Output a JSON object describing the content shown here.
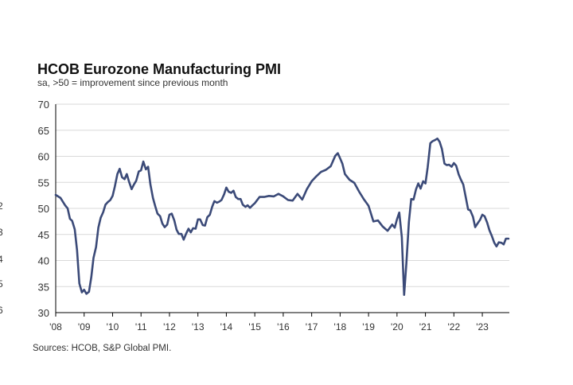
{
  "colors": {
    "line": "#3b4a78",
    "grid": "#d9d9d9",
    "axis": "#000000",
    "background": "#ffffff"
  },
  "source": "Sources: HCOB, S&P Global PMI.",
  "edge_marks": [
    "2",
    "3",
    "4",
    "5",
    "6"
  ],
  "chart_data": {
    "type": "line",
    "title": "HCOB Eurozone Manufacturing PMI",
    "subtitle": "sa, >50 = improvement since previous month",
    "xlabel": "",
    "ylabel": "",
    "ylim": [
      30,
      70
    ],
    "xlim": [
      2008.0,
      2023.95
    ],
    "yticks": [
      30,
      35,
      40,
      45,
      50,
      55,
      60,
      65,
      70
    ],
    "xticks": [
      {
        "label": "'08",
        "x": 2008
      },
      {
        "label": "'09",
        "x": 2009
      },
      {
        "label": "'10",
        "x": 2010
      },
      {
        "label": "'11",
        "x": 2011
      },
      {
        "label": "'12",
        "x": 2012
      },
      {
        "label": "'13",
        "x": 2013
      },
      {
        "label": "'14",
        "x": 2014
      },
      {
        "label": "'15",
        "x": 2015
      },
      {
        "label": "'16",
        "x": 2016
      },
      {
        "label": "'17",
        "x": 2017
      },
      {
        "label": "'18",
        "x": 2018
      },
      {
        "label": "'19",
        "x": 2019
      },
      {
        "label": "'20",
        "x": 2020
      },
      {
        "label": "'21",
        "x": 2021
      },
      {
        "label": "'22",
        "x": 2022
      },
      {
        "label": "'23",
        "x": 2023
      }
    ],
    "grid": true,
    "series": [
      {
        "name": "HCOB Eurozone Manufacturing PMI",
        "x": [
          2008.0,
          2008.17,
          2008.33,
          2008.42,
          2008.5,
          2008.58,
          2008.67,
          2008.75,
          2008.83,
          2008.92,
          2009.0,
          2009.08,
          2009.17,
          2009.25,
          2009.33,
          2009.42,
          2009.5,
          2009.58,
          2009.67,
          2009.75,
          2009.83,
          2009.92,
          2010.0,
          2010.08,
          2010.17,
          2010.25,
          2010.33,
          2010.42,
          2010.5,
          2010.58,
          2010.67,
          2010.75,
          2010.83,
          2010.92,
          2011.0,
          2011.08,
          2011.17,
          2011.25,
          2011.33,
          2011.42,
          2011.5,
          2011.58,
          2011.67,
          2011.75,
          2011.83,
          2011.92,
          2012.0,
          2012.08,
          2012.17,
          2012.25,
          2012.33,
          2012.42,
          2012.5,
          2012.58,
          2012.67,
          2012.75,
          2012.83,
          2012.92,
          2013.0,
          2013.08,
          2013.17,
          2013.25,
          2013.33,
          2013.42,
          2013.5,
          2013.58,
          2013.67,
          2013.75,
          2013.83,
          2013.92,
          2014.0,
          2014.08,
          2014.17,
          2014.25,
          2014.33,
          2014.42,
          2014.5,
          2014.58,
          2014.67,
          2014.75,
          2014.83,
          2014.92,
          2015.0,
          2015.17,
          2015.33,
          2015.5,
          2015.67,
          2015.83,
          2016.0,
          2016.17,
          2016.33,
          2016.5,
          2016.67,
          2016.83,
          2017.0,
          2017.17,
          2017.33,
          2017.5,
          2017.67,
          2017.83,
          2017.92,
          2018.0,
          2018.08,
          2018.17,
          2018.33,
          2018.5,
          2018.67,
          2018.83,
          2019.0,
          2019.17,
          2019.33,
          2019.5,
          2019.67,
          2019.83,
          2019.92,
          2020.0,
          2020.08,
          2020.17,
          2020.25,
          2020.33,
          2020.42,
          2020.5,
          2020.58,
          2020.67,
          2020.75,
          2020.83,
          2020.92,
          2021.0,
          2021.08,
          2021.17,
          2021.25,
          2021.33,
          2021.42,
          2021.5,
          2021.58,
          2021.67,
          2021.75,
          2021.83,
          2021.92,
          2022.0,
          2022.08,
          2022.17,
          2022.25,
          2022.33,
          2022.42,
          2022.5,
          2022.58,
          2022.67,
          2022.75,
          2022.83,
          2022.92,
          2023.0,
          2023.08,
          2023.17,
          2023.25,
          2023.33,
          2023.42,
          2023.5,
          2023.58,
          2023.67,
          2023.75,
          2023.83,
          2023.92
        ],
        "values": [
          52.6,
          52.0,
          50.6,
          50.0,
          48.0,
          47.6,
          46.0,
          42.0,
          35.6,
          33.9,
          34.4,
          33.6,
          34.0,
          36.8,
          40.5,
          42.6,
          46.3,
          48.2,
          49.3,
          50.7,
          51.2,
          51.6,
          52.4,
          54.2,
          56.6,
          57.6,
          56.0,
          55.6,
          56.6,
          55.1,
          53.7,
          54.6,
          55.3,
          57.1,
          57.3,
          59.0,
          57.5,
          58.0,
          54.6,
          52.0,
          50.4,
          49.0,
          48.5,
          47.1,
          46.4,
          46.9,
          48.8,
          49.0,
          47.7,
          45.9,
          45.1,
          45.1,
          44.0,
          45.1,
          46.1,
          45.4,
          46.2,
          46.1,
          47.9,
          47.9,
          46.8,
          46.7,
          48.3,
          48.8,
          50.3,
          51.4,
          51.1,
          51.3,
          51.6,
          52.7,
          54.0,
          53.2,
          53.0,
          53.4,
          52.2,
          51.8,
          51.8,
          50.7,
          50.3,
          50.6,
          50.1,
          50.6,
          51.0,
          52.2,
          52.2,
          52.4,
          52.3,
          52.8,
          52.3,
          51.6,
          51.5,
          52.8,
          51.7,
          53.7,
          55.2,
          56.2,
          57.0,
          57.4,
          58.1,
          60.1,
          60.6,
          59.6,
          58.6,
          56.6,
          55.5,
          54.9,
          53.2,
          51.8,
          50.5,
          47.5,
          47.7,
          46.5,
          45.7,
          46.9,
          46.3,
          47.9,
          49.2,
          44.5,
          33.4,
          39.4,
          47.4,
          51.8,
          51.7,
          53.7,
          54.8,
          53.8,
          55.2,
          54.8,
          57.9,
          62.5,
          62.9,
          63.1,
          63.4,
          62.8,
          61.4,
          58.6,
          58.3,
          58.4,
          58.0,
          58.7,
          58.2,
          56.5,
          55.5,
          54.6,
          52.1,
          49.8,
          49.6,
          48.4,
          46.4,
          47.1,
          47.8,
          48.8,
          48.5,
          47.3,
          45.8,
          44.8,
          43.4,
          42.7,
          43.5,
          43.4,
          43.1,
          44.2,
          44.2
        ]
      }
    ]
  }
}
